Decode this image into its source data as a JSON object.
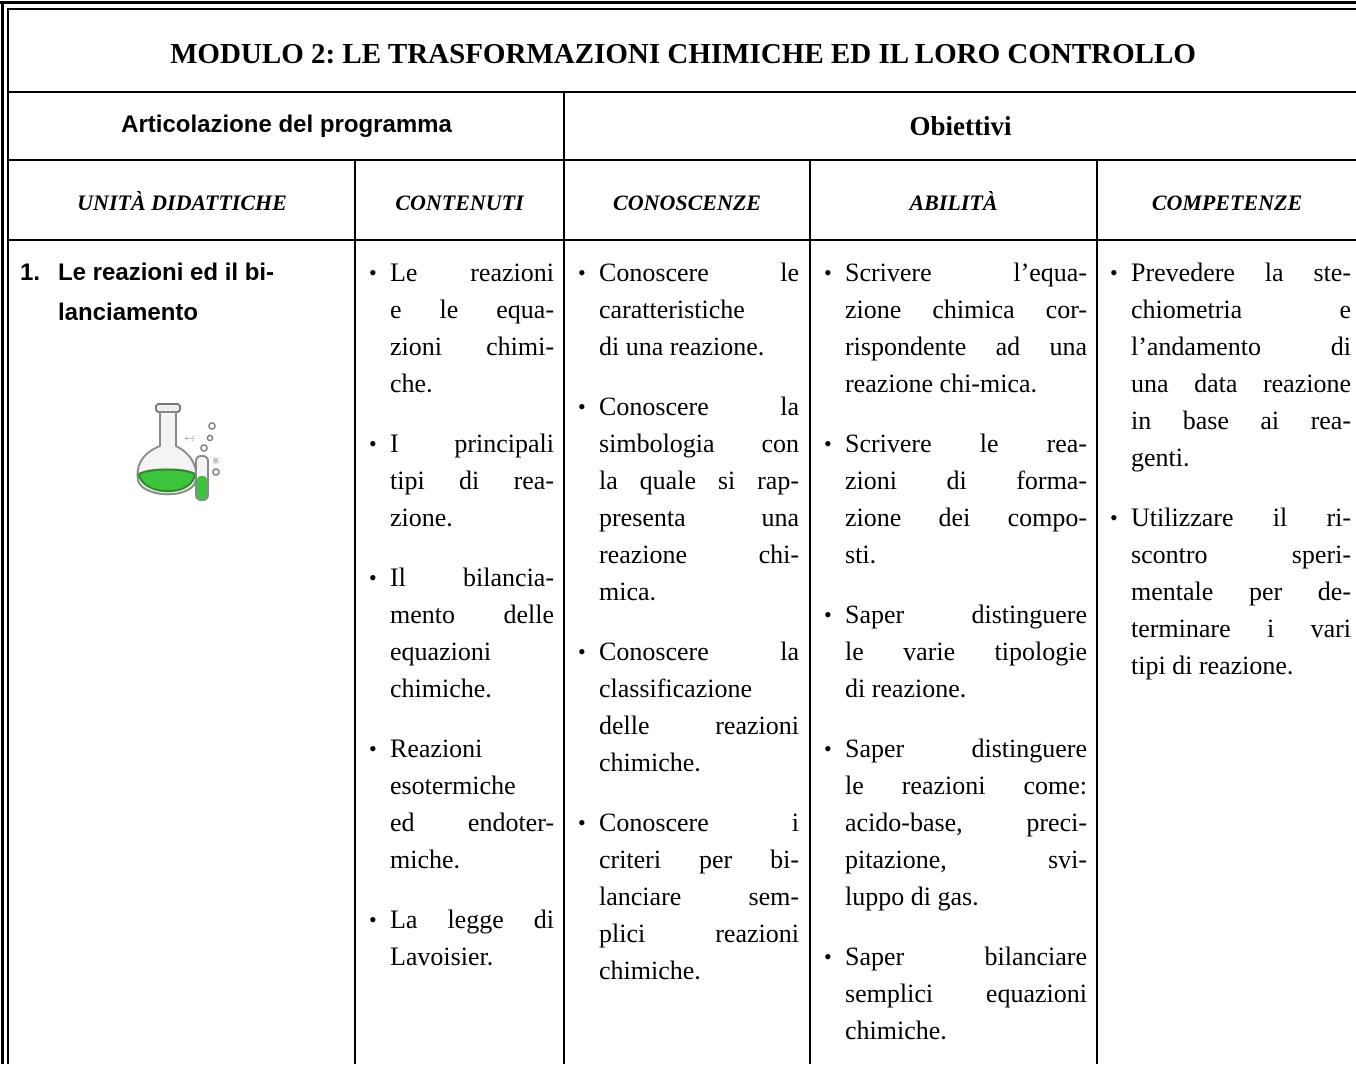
{
  "title": "MODULO 2: LE TRASFORMAZIONI CHIMICHE ED IL LORO CONTROLLO",
  "header": {
    "articolazione": "Articolazione del programma",
    "obiettivi": "Obiettivi"
  },
  "columns": [
    "UNITÀ DIDATTICHE",
    "CONTENUTI",
    "CONOSCENZE",
    "ABILITÀ",
    "COMPETENZE"
  ],
  "rows": [
    {
      "unit": {
        "number": "1.",
        "lines": [
          "Le reazioni ed il bi-",
          "lanciamento"
        ]
      },
      "cells": [
        [
          [
            "Le reazioni",
            "e le equa-",
            "zioni chimi-",
            "che."
          ],
          [
            "I principali",
            "tipi di rea-",
            "zione."
          ],
          [
            "Il bilancia-",
            "mento delle",
            "equazioni",
            "chimiche."
          ],
          [
            "Reazioni",
            "esotermiche",
            "ed endoter-",
            "miche."
          ],
          [
            "La legge di",
            "Lavoisier."
          ]
        ],
        [
          [
            "Conoscere le",
            "caratteristiche",
            "di una reazione."
          ],
          [
            "Conoscere la",
            "simbologia con",
            "la quale si rap-",
            "presenta una",
            "reazione chi-",
            "mica."
          ],
          [
            "Conoscere la",
            "classificazione",
            "delle reazioni",
            "chimiche."
          ],
          [
            "Conoscere i",
            "criteri per bi-",
            "lanciare sem-",
            "plici reazioni",
            "chimiche."
          ]
        ],
        [
          [
            "Scrivere l’equa-",
            "zione chimica cor-",
            "rispondente ad una",
            "reazione chi-mica."
          ],
          [
            "Scrivere le rea-",
            "zioni di forma-",
            "zione dei compo-",
            "sti."
          ],
          [
            "Saper distinguere",
            "le varie tipologie",
            "di reazione."
          ],
          [
            "Saper distinguere",
            "le reazioni come:",
            "acido-base, preci-",
            "pitazione, svi-",
            "luppo di gas."
          ],
          [
            "Saper bilanciare",
            "semplici equazioni",
            "chimiche."
          ]
        ],
        [
          [
            "Prevedere la ste-",
            "chiometria e",
            "l’andamento di",
            "una data reazione",
            "in base ai rea-",
            "genti."
          ],
          [
            "Utilizzare il ri-",
            "scontro speri-",
            "mentale per de-",
            "terminare i vari",
            "tipi di reazione."
          ]
        ]
      ]
    }
  ]
}
